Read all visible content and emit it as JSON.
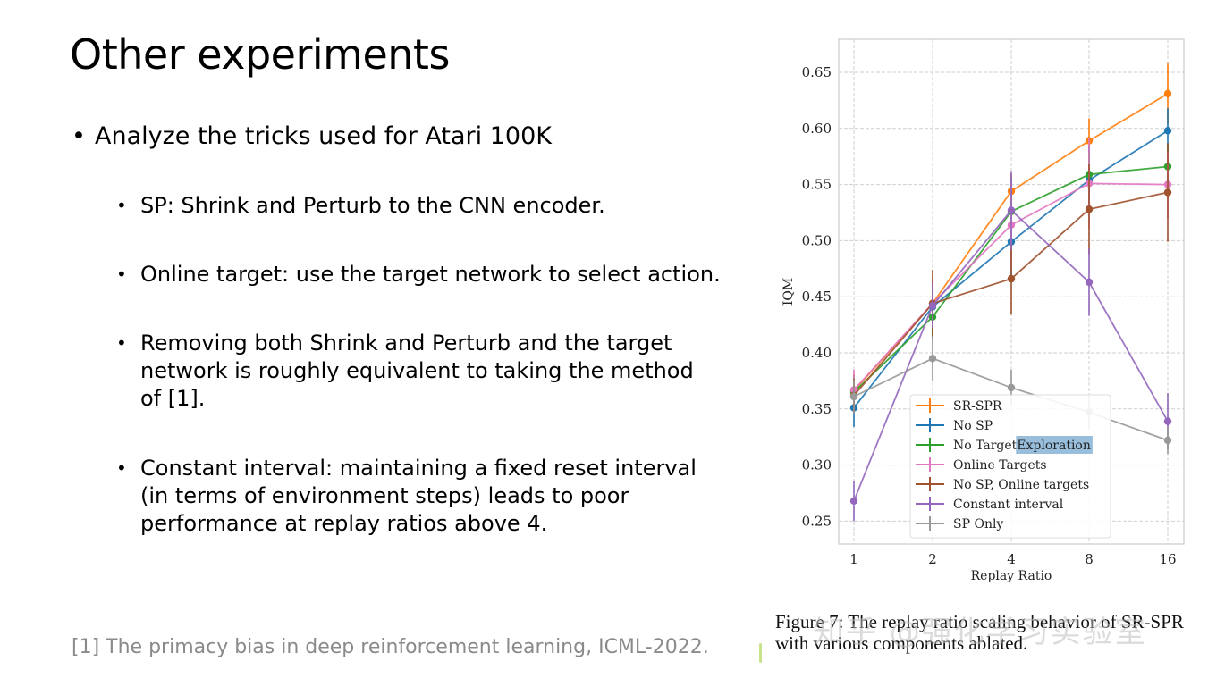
{
  "slide": {
    "title": "Other experiments",
    "bullets": [
      {
        "level": 1,
        "text": "Analyze the tricks used for Atari 100K"
      },
      {
        "level": 2,
        "text": "SP: Shrink and Perturb to the CNN encoder."
      },
      {
        "level": 2,
        "text": "Online target: use the target network to select action."
      },
      {
        "level": 2,
        "text": "Removing both Shrink and Perturb and the target network is roughly equivalent to taking the method of [1]."
      },
      {
        "level": 2,
        "text": "Constant interval: maintaining a fixed reset interval (in terms of environment steps) leads to poor performance at replay ratios above 4."
      }
    ],
    "bullet_glyph": "•",
    "footnote": "[1] The primacy bias in deep reinforcement learning, ICML-2022.",
    "figure_caption": "Figure 7: The replay ratio scaling behavior of SR-SPR with various components ablated.",
    "watermark": "知乎 @强化学习实验室"
  },
  "chart_data": {
    "type": "line",
    "title": "",
    "xlabel": "Replay Ratio",
    "ylabel": "IQM",
    "x": [
      1,
      2,
      4,
      8,
      16
    ],
    "x_scale": "log2",
    "xticks": [
      "1",
      "2",
      "4",
      "8",
      "16"
    ],
    "yticks": [
      "0.25",
      "0.30",
      "0.35",
      "0.40",
      "0.45",
      "0.50",
      "0.55",
      "0.60",
      "0.65"
    ],
    "ylim": [
      0.23,
      0.68
    ],
    "grid": true,
    "legend_position": "lower center",
    "legend_highlight": "Exploration",
    "series": [
      {
        "name": "SR-SPR",
        "color": "#ff7f0e",
        "values": [
          0.366,
          0.444,
          0.544,
          0.589,
          0.631
        ],
        "err": [
          0.015,
          0.02,
          0.015,
          0.02,
          0.027
        ]
      },
      {
        "name": "No SP",
        "color": "#1f77b4",
        "values": [
          0.351,
          0.441,
          0.499,
          0.554,
          0.598
        ],
        "err": [
          0.017,
          0.025,
          0.03,
          0.03,
          0.02
        ]
      },
      {
        "name": "No Target Exploration",
        "color": "#2ca02c",
        "values": [
          0.365,
          0.432,
          0.526,
          0.559,
          0.566
        ],
        "err": [
          0.015,
          0.02,
          0.03,
          0.02,
          0.02
        ]
      },
      {
        "name": "Online Targets",
        "color": "#e377c2",
        "values": [
          0.367,
          0.444,
          0.514,
          0.551,
          0.55
        ],
        "err": [
          0.018,
          0.02,
          0.04,
          0.04,
          0.03
        ]
      },
      {
        "name": "No SP, Online targets",
        "color": "#a0522d",
        "values": [
          0.362,
          0.444,
          0.466,
          0.528,
          0.543
        ],
        "err": [
          0.015,
          0.03,
          0.032,
          0.04,
          0.044
        ]
      },
      {
        "name": "Constant interval",
        "color": "#9467bd",
        "values": [
          0.268,
          0.442,
          0.527,
          0.463,
          0.339
        ],
        "err": [
          0.018,
          0.02,
          0.035,
          0.03,
          0.025
        ]
      },
      {
        "name": "SP Only",
        "color": "#999999",
        "values": [
          0.361,
          0.395,
          0.369,
          0.347,
          0.322
        ],
        "err": [
          0.015,
          0.02,
          0.016,
          0.015,
          0.012
        ]
      }
    ]
  }
}
